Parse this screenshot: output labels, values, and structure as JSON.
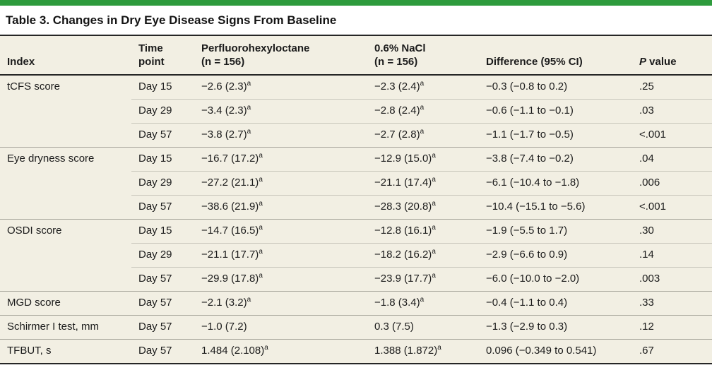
{
  "title": "Table 3. Changes in Dry Eye Disease Signs From Baseline",
  "colors": {
    "accent_green": "#2e9b3d",
    "table_background": "#f2efe3",
    "rule_dark": "#262626",
    "rule_group": "#a6a49a",
    "rule_sub": "#c8c6bb"
  },
  "table": {
    "columns": [
      {
        "id": "index",
        "lines": [
          "Index"
        ]
      },
      {
        "id": "time",
        "lines": [
          "Time",
          "point"
        ]
      },
      {
        "id": "pfho",
        "lines": [
          "Perfluorohexyloctane",
          "(n = 156)"
        ]
      },
      {
        "id": "nacl",
        "lines": [
          "0.6% NaCl",
          "(n = 156)"
        ]
      },
      {
        "id": "diff",
        "lines": [
          "Difference (95% CI)"
        ]
      },
      {
        "id": "p",
        "italic_prefix": "P",
        "rest": " value"
      }
    ],
    "footnote_marker": "a",
    "groups": [
      {
        "index": "tCFS score",
        "rows": [
          {
            "time": "Day 15",
            "pfho": "−2.6 (2.3)",
            "pfho_sup": "a",
            "nacl": "−2.3 (2.4)",
            "nacl_sup": "a",
            "diff": "−0.3 (−0.8 to 0.2)",
            "p": ".25"
          },
          {
            "time": "Day 29",
            "pfho": "−3.4 (2.3)",
            "pfho_sup": "a",
            "nacl": "−2.8 (2.4)",
            "nacl_sup": "a",
            "diff": "−0.6 (−1.1 to −0.1)",
            "p": ".03"
          },
          {
            "time": "Day 57",
            "pfho": "−3.8 (2.7)",
            "pfho_sup": "a",
            "nacl": "−2.7 (2.8)",
            "nacl_sup": "a",
            "diff": "−1.1 (−1.7 to −0.5)",
            "p": "<.001"
          }
        ]
      },
      {
        "index": "Eye dryness score",
        "rows": [
          {
            "time": "Day 15",
            "pfho": "−16.7 (17.2)",
            "pfho_sup": "a",
            "nacl": "−12.9 (15.0)",
            "nacl_sup": "a",
            "diff": "−3.8 (−7.4 to −0.2)",
            "p": ".04"
          },
          {
            "time": "Day 29",
            "pfho": "−27.2 (21.1)",
            "pfho_sup": "a",
            "nacl": "−21.1 (17.4)",
            "nacl_sup": "a",
            "diff": "−6.1 (−10.4 to −1.8)",
            "p": ".006"
          },
          {
            "time": "Day 57",
            "pfho": "−38.6 (21.9)",
            "pfho_sup": "a",
            "nacl": "−28.3 (20.8)",
            "nacl_sup": "a",
            "diff": "−10.4 (−15.1 to −5.6)",
            "p": "<.001"
          }
        ]
      },
      {
        "index": "OSDI score",
        "rows": [
          {
            "time": "Day 15",
            "pfho": "−14.7 (16.5)",
            "pfho_sup": "a",
            "nacl": "−12.8 (16.1)",
            "nacl_sup": "a",
            "diff": "−1.9 (−5.5 to 1.7)",
            "p": ".30"
          },
          {
            "time": "Day 29",
            "pfho": "−21.1 (17.7)",
            "pfho_sup": "a",
            "nacl": "−18.2 (16.2)",
            "nacl_sup": "a",
            "diff": "−2.9 (−6.6 to 0.9)",
            "p": ".14"
          },
          {
            "time": "Day 57",
            "pfho": "−29.9 (17.8)",
            "pfho_sup": "a",
            "nacl": "−23.9 (17.7)",
            "nacl_sup": "a",
            "diff": "−6.0 (−10.0 to −2.0)",
            "p": ".003"
          }
        ]
      },
      {
        "index": "MGD score",
        "rows": [
          {
            "time": "Day 57",
            "pfho": "−2.1 (3.2)",
            "pfho_sup": "a",
            "nacl": "−1.8 (3.4)",
            "nacl_sup": "a",
            "diff": "−0.4 (−1.1 to 0.4)",
            "p": ".33"
          }
        ]
      },
      {
        "index": "Schirmer I test, mm",
        "rows": [
          {
            "time": "Day 57",
            "pfho": "−1.0 (7.2)",
            "pfho_sup": "",
            "nacl": "0.3 (7.5)",
            "nacl_sup": "",
            "diff": "−1.3 (−2.9 to 0.3)",
            "p": ".12"
          }
        ]
      },
      {
        "index": "TFBUT, s",
        "rows": [
          {
            "time": "Day 57",
            "pfho": "1.484 (2.108)",
            "pfho_sup": "a",
            "nacl": "1.388 (1.872)",
            "nacl_sup": "a",
            "diff": "0.096 (−0.349 to 0.541)",
            "p": ".67"
          }
        ]
      }
    ]
  }
}
